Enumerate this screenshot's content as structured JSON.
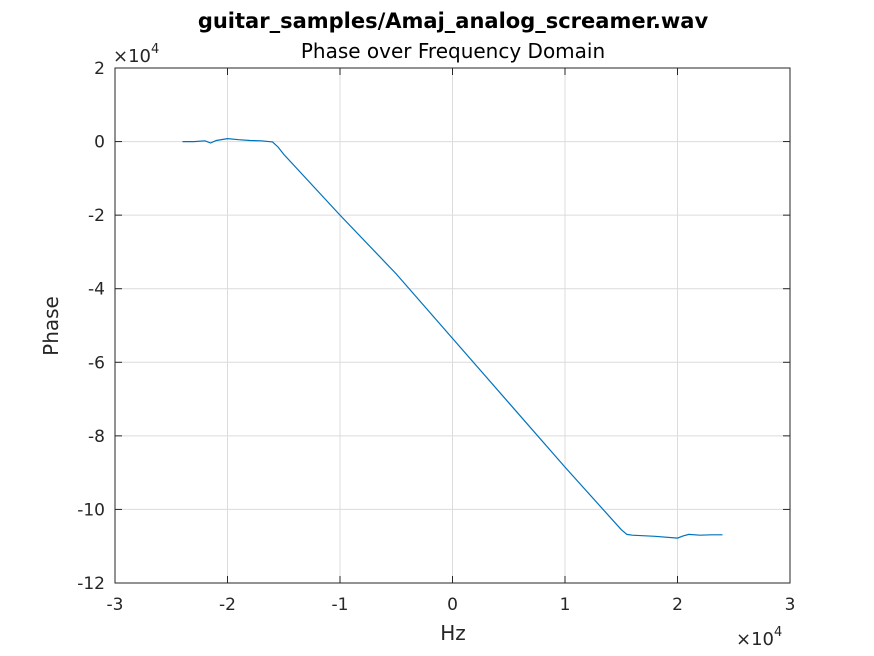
{
  "chart_data": {
    "type": "line",
    "title": "guitar_samples/Amaj_analog_screamer.wav",
    "subtitle": "Phase over Frequency Domain",
    "xlabel": "Hz",
    "ylabel": "Phase",
    "x_exponent_base": "×10",
    "x_exponent_power": "4",
    "y_exponent_base": "×10",
    "y_exponent_power": "4",
    "xlim": [
      -30000,
      30000
    ],
    "ylim": [
      -120000,
      20000
    ],
    "x_ticks": [
      -30000,
      -20000,
      -10000,
      0,
      10000,
      20000,
      30000
    ],
    "x_tick_labels": [
      "-3",
      "-2",
      "-1",
      "0",
      "1",
      "2",
      "3"
    ],
    "y_ticks": [
      20000,
      0,
      -20000,
      -40000,
      -60000,
      -80000,
      -100000,
      -120000
    ],
    "y_tick_labels": [
      "2",
      "0",
      "-2",
      "-4",
      "-6",
      "-8",
      "-10",
      "-12"
    ],
    "grid": true,
    "line_color": "#0072BD",
    "series": [
      {
        "x": [
          -24000,
          -23000,
          -22000,
          -21500,
          -21000,
          -20000,
          -19000,
          -18000,
          -17000,
          -16000,
          -15500,
          -15000,
          -10000,
          -5000,
          0,
          5000,
          10000,
          15000,
          15500,
          16000,
          18000,
          20000,
          20500,
          21000,
          22000,
          23000,
          24000
        ],
        "y": [
          0,
          0,
          200,
          -400,
          300,
          800,
          500,
          300,
          200,
          -100,
          -1500,
          -3500,
          -20000,
          -36000,
          -53500,
          -71000,
          -88500,
          -105500,
          -106800,
          -107000,
          -107300,
          -107800,
          -107200,
          -106800,
          -107000,
          -106900,
          -106900
        ]
      }
    ]
  }
}
